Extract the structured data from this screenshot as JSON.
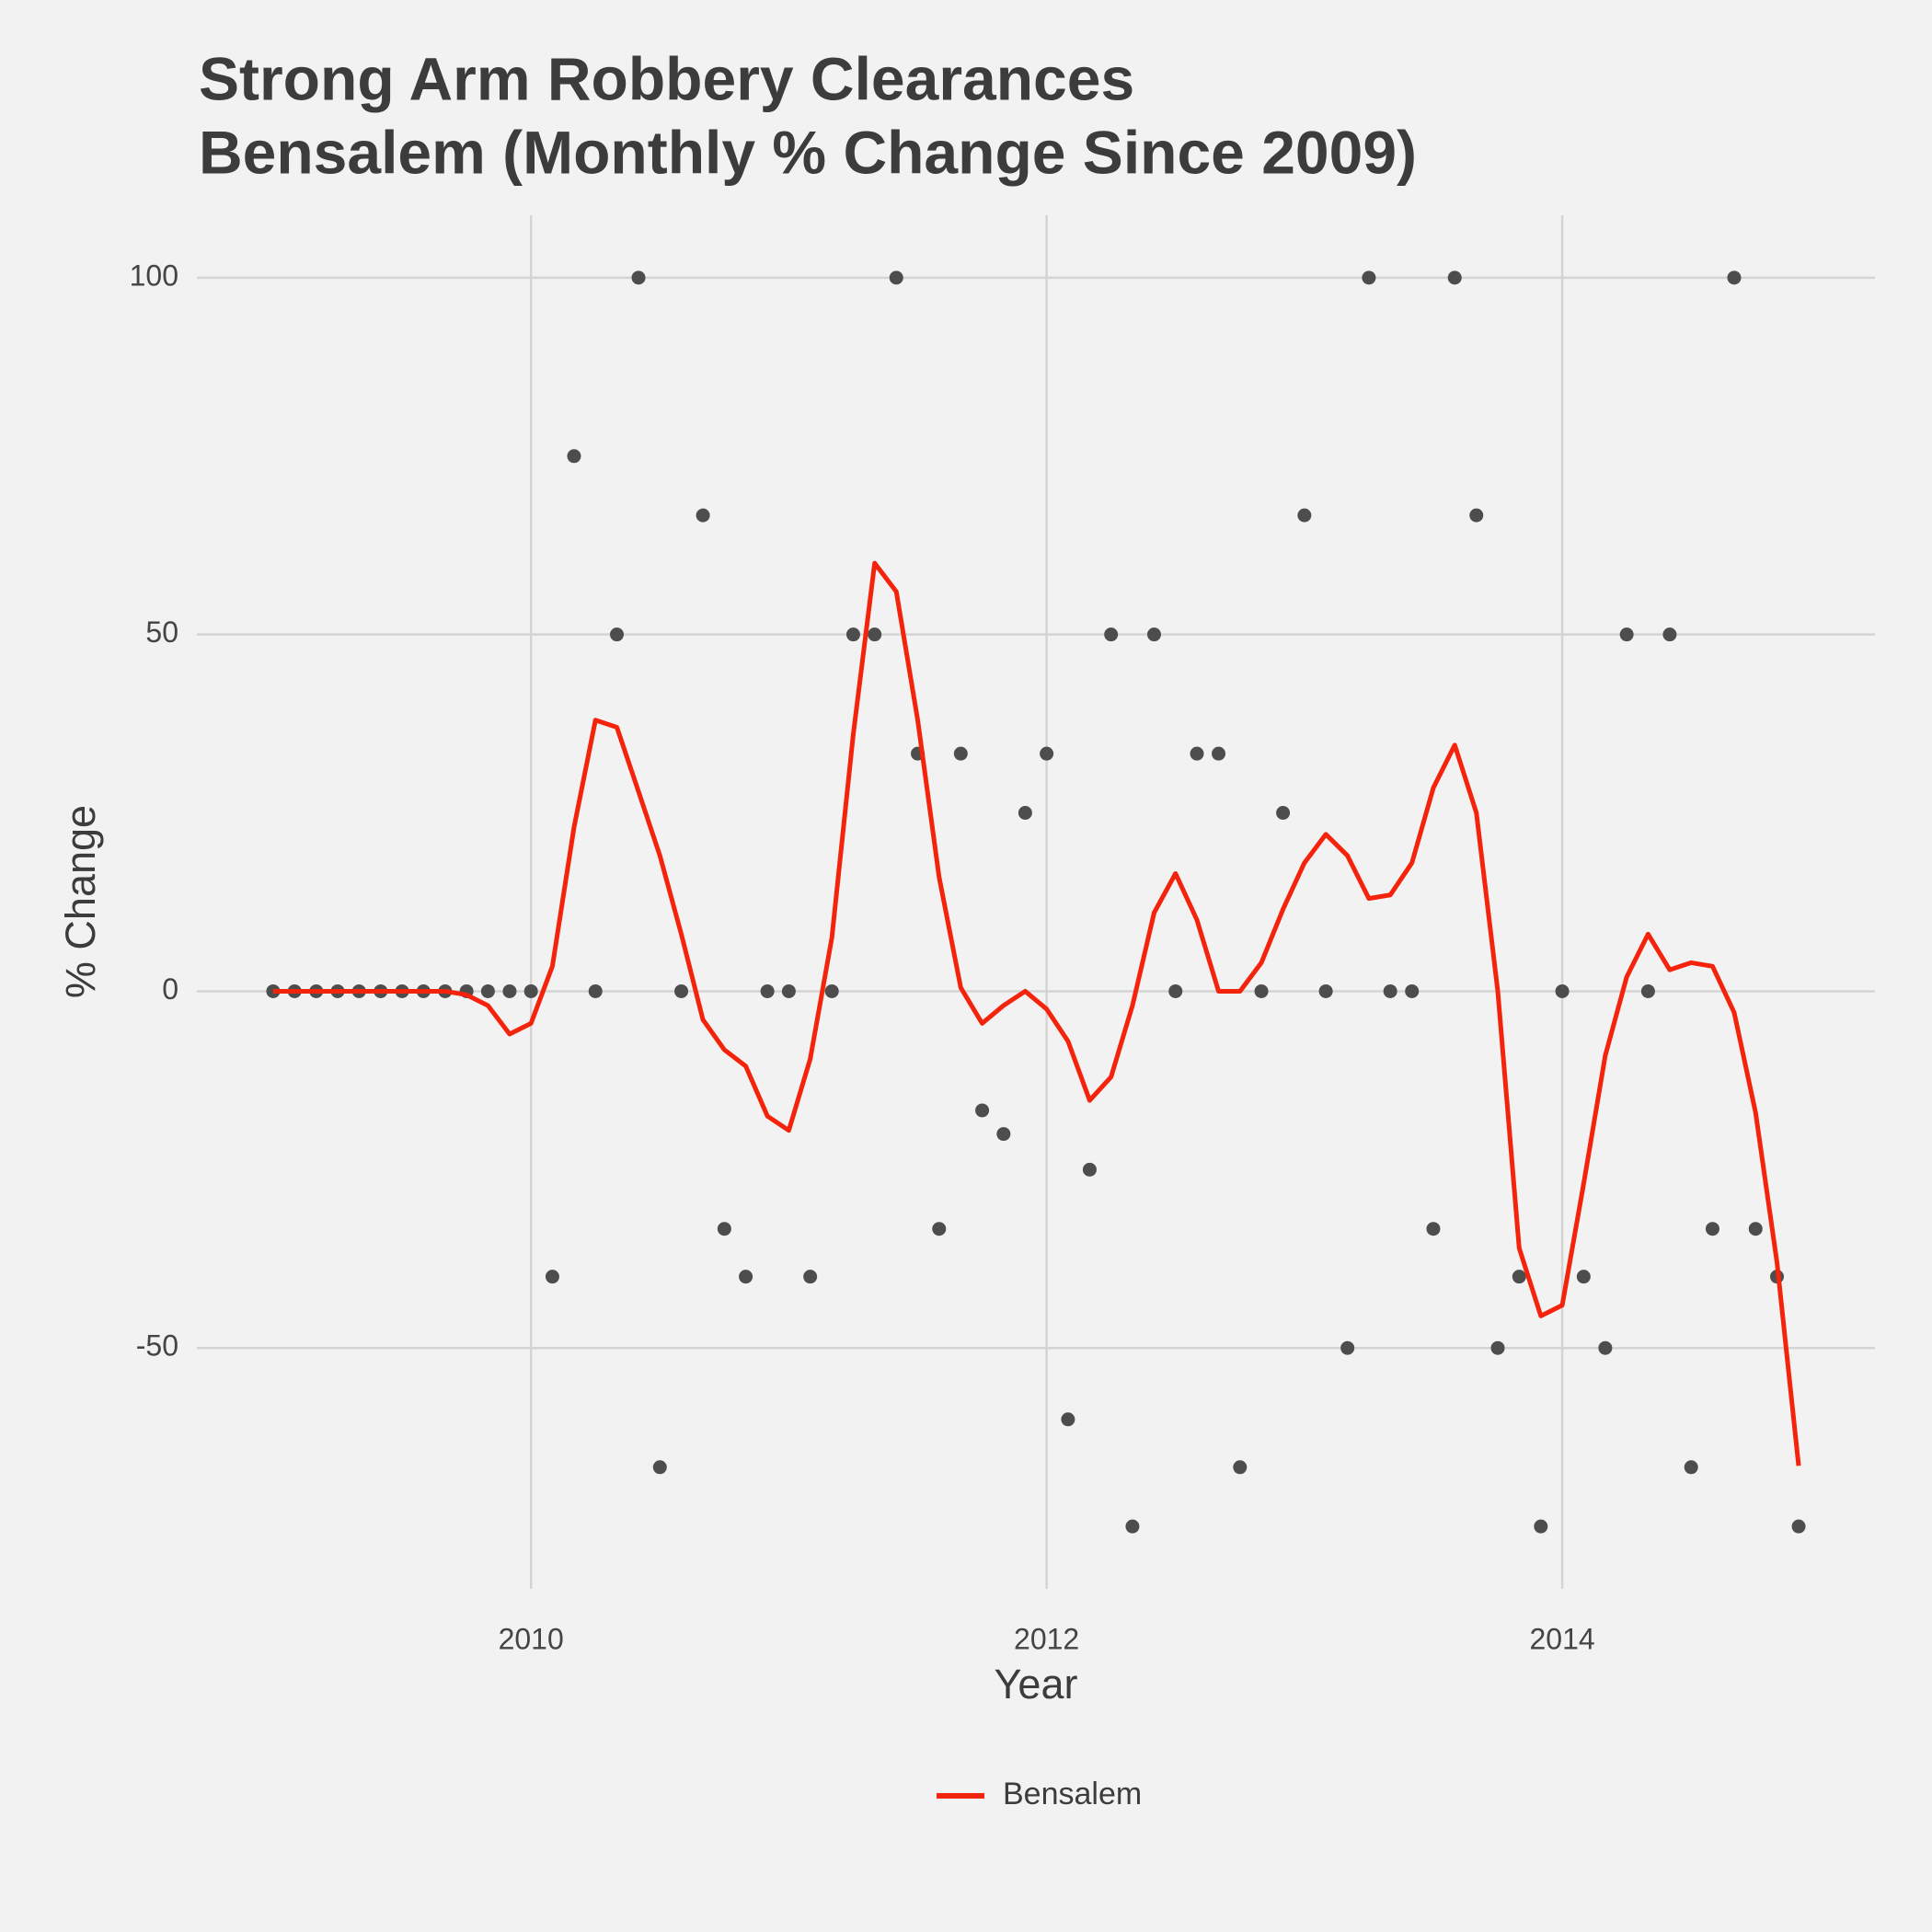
{
  "chart_data": {
    "type": "line",
    "title": [
      "Strong Arm Robbery Clearances",
      "Bensalem (Monthly % Change Since 2009)"
    ],
    "x_label": "Year",
    "y_label": "% Change",
    "x": [
      2009,
      2009.083,
      2009.167,
      2009.25,
      2009.333,
      2009.417,
      2009.5,
      2009.583,
      2009.667,
      2009.75,
      2009.833,
      2009.917,
      2010,
      2010.083,
      2010.167,
      2010.25,
      2010.333,
      2010.417,
      2010.5,
      2010.583,
      2010.667,
      2010.75,
      2010.833,
      2010.917,
      2011,
      2011.083,
      2011.167,
      2011.25,
      2011.333,
      2011.417,
      2011.5,
      2011.583,
      2011.667,
      2011.75,
      2011.833,
      2011.917,
      2012,
      2012.083,
      2012.167,
      2012.25,
      2012.333,
      2012.417,
      2012.5,
      2012.583,
      2012.667,
      2012.75,
      2012.833,
      2012.917,
      2013,
      2013.083,
      2013.167,
      2013.25,
      2013.333,
      2013.417,
      2013.5,
      2013.583,
      2013.667,
      2013.75,
      2013.833,
      2013.917,
      2014,
      2014.083,
      2014.167,
      2014.25,
      2014.333,
      2014.417,
      2014.5,
      2014.583,
      2014.667,
      2014.75,
      2014.833,
      2014.917
    ],
    "points": {
      "color": "#4d4d4d",
      "values": [
        0,
        0,
        0,
        0,
        0,
        0,
        0,
        0,
        0,
        0,
        0,
        0,
        0,
        -40,
        75,
        0,
        50,
        100,
        -66.7,
        0,
        66.7,
        -33.3,
        -40,
        0,
        0,
        -40,
        0,
        50,
        50,
        100,
        33.3,
        -33.3,
        33.3,
        -16.7,
        -20,
        25,
        33.3,
        -60,
        -25,
        50,
        -75,
        50,
        0,
        33.3,
        33.3,
        -66.7,
        0,
        25,
        66.7,
        0,
        -50,
        100,
        0,
        0,
        -33.3,
        100,
        66.7,
        -50,
        -40,
        -75,
        0,
        -40,
        -50,
        50,
        0,
        50,
        -66.7,
        -33.3,
        100,
        -33.3,
        -40,
        -75
      ]
    },
    "series": [
      {
        "name": "Bensalem",
        "color": "#f4230c",
        "values": [
          0,
          0,
          0,
          0,
          0,
          0,
          0,
          0,
          0,
          -0.5,
          -2,
          -6,
          -4.5,
          3.5,
          23,
          38,
          37,
          28,
          19,
          8,
          -4,
          -8.2,
          -10.5,
          -17.5,
          -19.5,
          -9.5,
          7.5,
          36,
          60,
          56,
          38,
          16,
          0.5,
          -4.5,
          -2,
          0,
          -2.5,
          -7,
          -15.3,
          -12,
          -2,
          11,
          16.5,
          10,
          0,
          0,
          4,
          11.5,
          18,
          22,
          19,
          13,
          13.5,
          18,
          28.5,
          34.5,
          25,
          0,
          -36,
          -45.5,
          -44,
          -27,
          -9,
          2,
          8,
          3,
          4,
          3.5,
          -3,
          -17,
          -38,
          -66.5
        ]
      }
    ],
    "xlim": [
      2008.704,
      2015.213
    ],
    "xticks": [
      2010,
      2012,
      2014
    ],
    "ylim": [
      -83.75,
      108.75
    ],
    "yticks": [
      -50,
      0,
      50,
      100
    ],
    "grid": true,
    "legend": "bottom"
  }
}
